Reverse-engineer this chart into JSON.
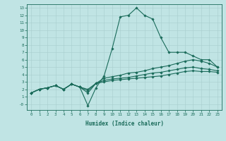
{
  "xlabel": "Humidex (Indice chaleur)",
  "bg_color": "#c0e4e4",
  "line_color": "#1a6b5a",
  "xlim": [
    -0.5,
    23.5
  ],
  "ylim": [
    -0.8,
    13.5
  ],
  "xticks": [
    0,
    1,
    2,
    3,
    4,
    5,
    6,
    7,
    8,
    9,
    10,
    11,
    12,
    13,
    14,
    15,
    16,
    17,
    18,
    19,
    20,
    21,
    22,
    23
  ],
  "yticks": [
    0,
    1,
    2,
    3,
    4,
    5,
    6,
    7,
    8,
    9,
    10,
    11,
    12,
    13
  ],
  "ytick_labels": [
    "-0",
    "1",
    "2",
    "3",
    "4",
    "5",
    "6",
    "7",
    "8",
    "9",
    "10",
    "11",
    "12",
    "13"
  ],
  "series": [
    {
      "x": [
        0,
        1,
        2,
        3,
        4,
        5,
        6,
        7,
        8,
        9,
        10,
        11,
        12,
        13,
        14,
        15,
        16,
        17,
        18,
        19,
        20,
        21,
        22,
        23
      ],
      "y": [
        1.5,
        2.0,
        2.2,
        2.5,
        2.0,
        2.7,
        2.3,
        -0.2,
        2.2,
        3.8,
        7.5,
        11.8,
        12.0,
        13.0,
        12.0,
        11.5,
        9.0,
        7.0,
        7.0,
        7.0,
        6.5,
        6.0,
        6.0,
        5.0
      ]
    },
    {
      "x": [
        0,
        1,
        2,
        3,
        4,
        5,
        6,
        7,
        8,
        9,
        10,
        11,
        12,
        13,
        14,
        15,
        16,
        17,
        18,
        19,
        20,
        21,
        22,
        23
      ],
      "y": [
        1.5,
        2.0,
        2.2,
        2.5,
        2.0,
        2.7,
        2.3,
        1.5,
        2.8,
        3.5,
        3.7,
        3.9,
        4.2,
        4.3,
        4.5,
        4.8,
        5.0,
        5.2,
        5.5,
        5.8,
        6.0,
        5.8,
        5.5,
        5.0
      ]
    },
    {
      "x": [
        0,
        1,
        2,
        3,
        4,
        5,
        6,
        7,
        8,
        9,
        10,
        11,
        12,
        13,
        14,
        15,
        16,
        17,
        18,
        19,
        20,
        21,
        22,
        23
      ],
      "y": [
        1.5,
        2.0,
        2.2,
        2.5,
        2.0,
        2.7,
        2.3,
        1.8,
        2.8,
        3.2,
        3.4,
        3.5,
        3.6,
        3.8,
        4.0,
        4.2,
        4.3,
        4.5,
        4.7,
        4.9,
        5.0,
        4.8,
        4.7,
        4.5
      ]
    },
    {
      "x": [
        0,
        1,
        2,
        3,
        4,
        5,
        6,
        7,
        8,
        9,
        10,
        11,
        12,
        13,
        14,
        15,
        16,
        17,
        18,
        19,
        20,
        21,
        22,
        23
      ],
      "y": [
        1.5,
        2.0,
        2.2,
        2.5,
        2.0,
        2.7,
        2.3,
        2.0,
        2.8,
        3.0,
        3.2,
        3.3,
        3.4,
        3.5,
        3.6,
        3.7,
        3.8,
        4.0,
        4.2,
        4.4,
        4.5,
        4.4,
        4.4,
        4.3
      ]
    }
  ]
}
